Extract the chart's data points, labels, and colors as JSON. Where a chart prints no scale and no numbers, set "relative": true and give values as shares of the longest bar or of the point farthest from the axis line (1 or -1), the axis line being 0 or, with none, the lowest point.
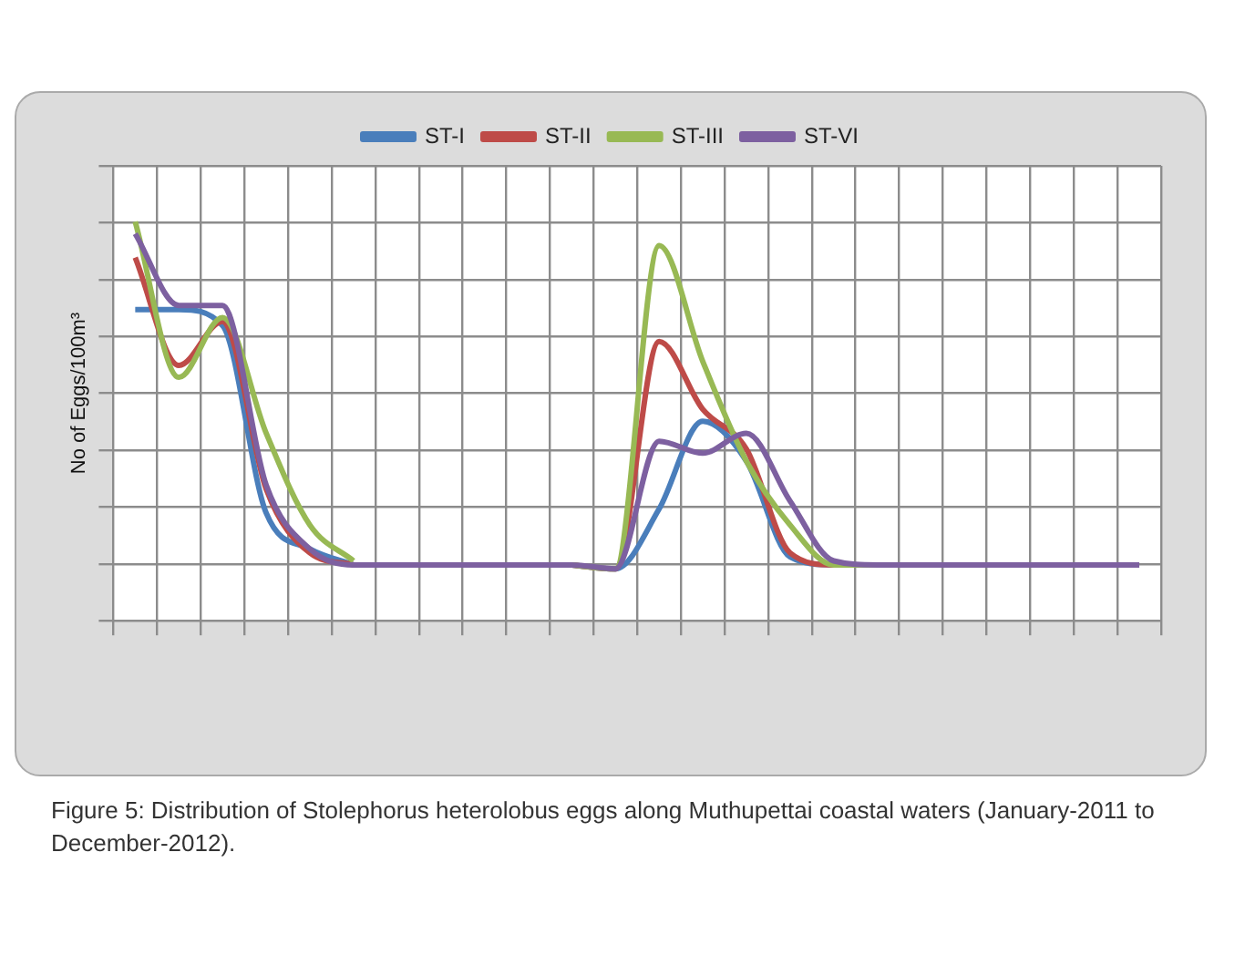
{
  "chart_data": {
    "type": "line",
    "relative": true,
    "ylabel": "No of Eggs/100m³",
    "legend": "top",
    "grid": true,
    "marker": "none",
    "categories": [
      null,
      null,
      null,
      null,
      null,
      null,
      null,
      null,
      null,
      null,
      null,
      null,
      null,
      null,
      null,
      null,
      null,
      null,
      null,
      null,
      null,
      null,
      null,
      null
    ],
    "series": [
      {
        "name": "ST-I",
        "color": "#4a7ebb",
        "values": [
          0.78,
          0.78,
          0.74,
          0.27,
          0.18,
          0.14,
          null,
          null,
          null,
          null,
          0.14,
          0.13,
          0.28,
          0.5,
          0.4,
          0.16,
          0.14,
          0.14,
          null,
          null,
          null,
          null,
          null,
          null
        ]
      },
      {
        "name": "ST-II",
        "color": "#be4b48",
        "values": [
          0.91,
          0.64,
          0.75,
          0.33,
          0.17,
          0.14,
          null,
          null,
          null,
          null,
          0.14,
          0.13,
          0.7,
          0.53,
          0.43,
          0.17,
          0.14,
          0.14,
          null,
          null,
          null,
          null,
          null,
          null
        ]
      },
      {
        "name": "ST-III",
        "color": "#98b954",
        "values": [
          1,
          0.61,
          0.76,
          0.47,
          0.24,
          0.15,
          null,
          null,
          null,
          null,
          0.14,
          0.13,
          0.94,
          0.65,
          0.4,
          0.24,
          0.14,
          0.14,
          null,
          null,
          null,
          null,
          null,
          null
        ]
      },
      {
        "name": "ST-VI",
        "color": "#7d60a0",
        "values": [
          0.97,
          0.79,
          0.79,
          0.34,
          0.18,
          0.14,
          0.14,
          0.14,
          0.14,
          0.14,
          0.14,
          0.13,
          0.45,
          0.42,
          0.47,
          0.3,
          0.15,
          0.14,
          0.14,
          0.14,
          0.14,
          0.14,
          0.14,
          0.14
        ]
      }
    ],
    "annotations": [
      "Figure 5: Distribution of Stolephorus heterolobus eggs along Muthupettai coastal waters (January-2011 to December-2012)."
    ]
  }
}
